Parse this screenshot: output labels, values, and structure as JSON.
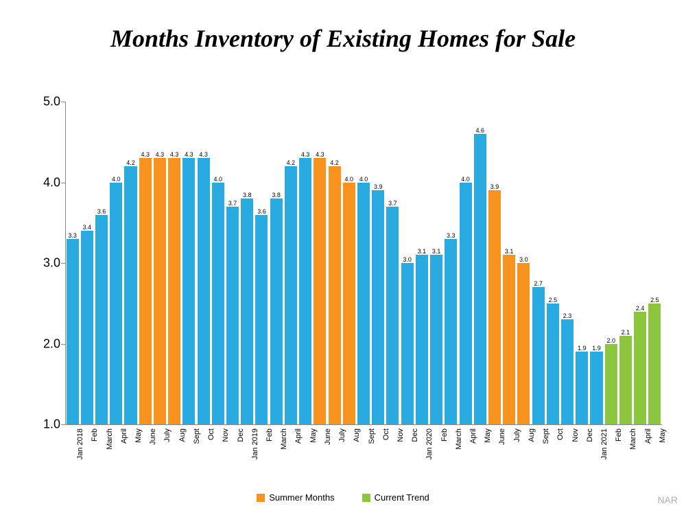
{
  "title": "Months Inventory of Existing Homes for Sale",
  "title_fontsize": 36,
  "attribution": "NAR",
  "attribution_fontsize": 14,
  "attribution_color": "#b0b0b0",
  "ylim": [
    1.0,
    5.0
  ],
  "ytick_step": 1.0,
  "ytick_labels": [
    "1.0",
    "2.0",
    "3.0",
    "4.0",
    "5.0"
  ],
  "ytick_fontsize": 18,
  "xlabel_fontsize": 11,
  "value_label_fontsize": 9,
  "legend_fontsize": 13,
  "bar_fill_ratio": 0.85,
  "colors": {
    "default": "#29abe2",
    "summer": "#f7931e",
    "trend": "#8cc63f"
  },
  "legend": [
    {
      "label": "Summer Months",
      "color": "#f7931e"
    },
    {
      "label": "Current Trend",
      "color": "#8cc63f"
    }
  ],
  "data": [
    {
      "label": "Jan 2018",
      "value": 3.3,
      "cat": "default"
    },
    {
      "label": "Feb",
      "value": 3.4,
      "cat": "default"
    },
    {
      "label": "March",
      "value": 3.6,
      "cat": "default"
    },
    {
      "label": "April",
      "value": 4.0,
      "cat": "default"
    },
    {
      "label": "May",
      "value": 4.2,
      "cat": "default"
    },
    {
      "label": "June",
      "value": 4.3,
      "cat": "summer"
    },
    {
      "label": "July",
      "value": 4.3,
      "cat": "summer"
    },
    {
      "label": "Aug",
      "value": 4.3,
      "cat": "summer"
    },
    {
      "label": "Sept",
      "value": 4.3,
      "cat": "default"
    },
    {
      "label": "Oct",
      "value": 4.3,
      "cat": "default"
    },
    {
      "label": "Nov",
      "value": 4.0,
      "cat": "default"
    },
    {
      "label": "Dec",
      "value": 3.7,
      "cat": "default"
    },
    {
      "label": "Jan 2019",
      "value": 3.8,
      "cat": "default"
    },
    {
      "label": "Feb",
      "value": 3.6,
      "cat": "default"
    },
    {
      "label": "March",
      "value": 3.8,
      "cat": "default"
    },
    {
      "label": "April",
      "value": 4.2,
      "cat": "default"
    },
    {
      "label": "May",
      "value": 4.3,
      "cat": "default"
    },
    {
      "label": "June",
      "value": 4.3,
      "cat": "summer"
    },
    {
      "label": "July",
      "value": 4.2,
      "cat": "summer"
    },
    {
      "label": "Aug",
      "value": 4.0,
      "cat": "summer"
    },
    {
      "label": "Sept",
      "value": 4.0,
      "cat": "default"
    },
    {
      "label": "Oct",
      "value": 3.9,
      "cat": "default"
    },
    {
      "label": "Nov",
      "value": 3.7,
      "cat": "default"
    },
    {
      "label": "Dec",
      "value": 3.0,
      "cat": "default"
    },
    {
      "label": "Jan 2020",
      "value": 3.1,
      "cat": "default"
    },
    {
      "label": "Feb",
      "value": 3.1,
      "cat": "default"
    },
    {
      "label": "March",
      "value": 3.3,
      "cat": "default"
    },
    {
      "label": "April",
      "value": 4.0,
      "cat": "default"
    },
    {
      "label": "May",
      "value": 4.6,
      "cat": "default"
    },
    {
      "label": "June",
      "value": 3.9,
      "cat": "summer"
    },
    {
      "label": "July",
      "value": 3.1,
      "cat": "summer"
    },
    {
      "label": "Aug",
      "value": 3.0,
      "cat": "summer"
    },
    {
      "label": "Sept",
      "value": 2.7,
      "cat": "default"
    },
    {
      "label": "Oct",
      "value": 2.5,
      "cat": "default"
    },
    {
      "label": "Nov",
      "value": 2.3,
      "cat": "default"
    },
    {
      "label": "Dec",
      "value": 1.9,
      "cat": "default"
    },
    {
      "label": "Jan 2021",
      "value": 1.9,
      "cat": "default"
    },
    {
      "label": "Feb",
      "value": 2.0,
      "cat": "trend"
    },
    {
      "label": "March",
      "value": 2.1,
      "cat": "trend"
    },
    {
      "label": "April",
      "value": 2.4,
      "cat": "trend"
    },
    {
      "label": "May",
      "value": 2.5,
      "cat": "trend"
    }
  ]
}
